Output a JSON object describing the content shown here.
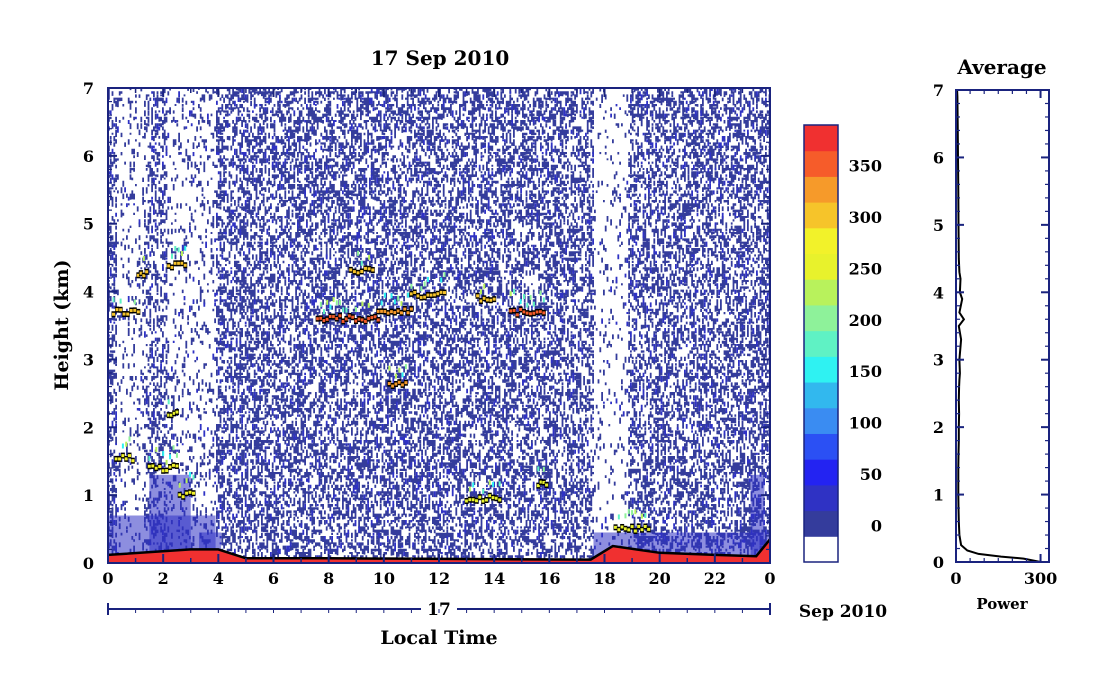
{
  "chart_data": [
    {
      "type": "heatmap",
      "title": "17 Sep 2010",
      "xlabel": "Local Time",
      "ylabel": "Height (km)",
      "x_ticks": [
        "0",
        "2",
        "4",
        "6",
        "8",
        "10",
        "12",
        "14",
        "16",
        "18",
        "20",
        "22",
        "0"
      ],
      "y_ticks": [
        "0",
        "1",
        "2",
        "3",
        "4",
        "5",
        "6",
        "7"
      ],
      "xlim": [
        0,
        24
      ],
      "ylim": [
        0,
        7
      ],
      "date_bar": {
        "day_label": "17",
        "month_label": "Sep 2010"
      },
      "colorbar": {
        "ticks": [
          "0",
          "50",
          "100",
          "150",
          "200",
          "250",
          "300",
          "350"
        ],
        "range": [
          0,
          375
        ],
        "step": 25,
        "colors": [
          "#ffffff",
          "#343c9c",
          "#2f32c4",
          "#2323f2",
          "#2b50f4",
          "#3a8cf2",
          "#32b8ee",
          "#2ff2f2",
          "#5ff2c4",
          "#8ef29a",
          "#b8f25c",
          "#e8f22c",
          "#f2f22a",
          "#f6c42a",
          "#f69a2a",
          "#f65c2a",
          "#f03030"
        ]
      },
      "cloud_layers": [
        {
          "x": [
            0.2,
            1.1
          ],
          "height_km": 3.7,
          "level": 320
        },
        {
          "x": [
            1.1,
            1.4
          ],
          "height_km": 4.25,
          "level": 300
        },
        {
          "x": [
            2.2,
            2.8
          ],
          "height_km": 4.38,
          "level": 300
        },
        {
          "x": [
            7.6,
            9.8
          ],
          "height_km": 3.6,
          "level": 360
        },
        {
          "x": [
            8.8,
            9.6
          ],
          "height_km": 4.3,
          "level": 300
        },
        {
          "x": [
            9.8,
            11.0
          ],
          "height_km": 3.7,
          "level": 340
        },
        {
          "x": [
            10.2,
            10.8
          ],
          "height_km": 2.65,
          "level": 340
        },
        {
          "x": [
            11.0,
            12.2
          ],
          "height_km": 3.95,
          "level": 320
        },
        {
          "x": [
            13.4,
            14.0
          ],
          "height_km": 3.9,
          "level": 300
        },
        {
          "x": [
            14.6,
            15.8
          ],
          "height_km": 3.7,
          "level": 360
        },
        {
          "x": [
            0.3,
            0.9
          ],
          "height_km": 1.55,
          "level": 280
        },
        {
          "x": [
            1.5,
            2.5
          ],
          "height_km": 1.4,
          "level": 280
        },
        {
          "x": [
            2.2,
            2.5
          ],
          "height_km": 2.2,
          "level": 260
        },
        {
          "x": [
            2.6,
            3.1
          ],
          "height_km": 1.0,
          "level": 280
        },
        {
          "x": [
            13.0,
            14.2
          ],
          "height_km": 0.95,
          "level": 260
        },
        {
          "x": [
            15.6,
            15.9
          ],
          "height_km": 1.15,
          "level": 260
        },
        {
          "x": [
            18.4,
            19.6
          ],
          "height_km": 0.5,
          "level": 260
        }
      ],
      "surface_layer": [
        [
          0,
          0.12
        ],
        [
          3.0,
          0.2
        ],
        [
          4.0,
          0.2
        ],
        [
          5.0,
          0.07
        ],
        [
          8.0,
          0.07
        ],
        [
          17.5,
          0.05
        ],
        [
          18.3,
          0.25
        ],
        [
          20.0,
          0.15
        ],
        [
          22.0,
          0.12
        ],
        [
          23.5,
          0.1
        ],
        [
          24.0,
          0.35
        ]
      ]
    },
    {
      "type": "line",
      "title": "Average",
      "xlabel": "Power",
      "x_ticks": [
        "0",
        "300"
      ],
      "y_ticks": [
        "0",
        "1",
        "2",
        "3",
        "4",
        "5",
        "6",
        "7"
      ],
      "xlim": [
        0,
        330
      ],
      "ylim": [
        0,
        7
      ],
      "series": [
        {
          "x": [
            300,
            240,
            160,
            80,
            40,
            18,
            12,
            10,
            9,
            8,
            8,
            8,
            9,
            10,
            10,
            11,
            10,
            11,
            12,
            14,
            12,
            18,
            10,
            28,
            12,
            22,
            14,
            16,
            12,
            10,
            9,
            8,
            7,
            6,
            5,
            4
          ],
          "y": [
            0.0,
            0.05,
            0.08,
            0.12,
            0.17,
            0.25,
            0.4,
            0.6,
            0.8,
            1.0,
            1.2,
            1.4,
            1.6,
            1.8,
            2.0,
            2.2,
            2.4,
            2.6,
            2.7,
            2.8,
            3.0,
            3.3,
            3.5,
            3.6,
            3.7,
            3.9,
            4.0,
            4.2,
            4.3,
            4.5,
            5.0,
            5.5,
            6.0,
            6.5,
            6.9,
            7.0
          ]
        }
      ]
    }
  ]
}
